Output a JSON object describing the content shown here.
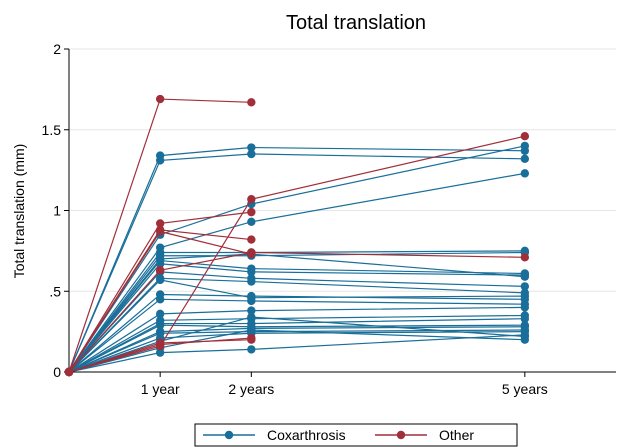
{
  "chart_data": {
    "type": "line",
    "title": "Total translation",
    "ylabel": "Total translation (mm)",
    "xlabel": "",
    "x_ticks": [
      {
        "value": 1,
        "label": "1 year"
      },
      {
        "value": 2,
        "label": "2 years"
      },
      {
        "value": 5,
        "label": "5 years"
      }
    ],
    "y_ticks": [
      {
        "value": 0,
        "label": "0"
      },
      {
        "value": 0.5,
        "label": ".5"
      },
      {
        "value": 1,
        "label": "1"
      },
      {
        "value": 1.5,
        "label": "1.5"
      },
      {
        "value": 2,
        "label": "2"
      }
    ],
    "xlim": [
      0,
      6
    ],
    "ylim": [
      0,
      2
    ],
    "legend": {
      "position": "bottom",
      "entries": [
        {
          "label": "Coxarthrosis",
          "color": "#1a6f9a"
        },
        {
          "label": "Other",
          "color": "#a12f3a"
        }
      ]
    },
    "groups": [
      {
        "name": "Coxarthrosis",
        "color": "#1a6f9a",
        "series": [
          [
            [
              0,
              0
            ],
            [
              1,
              1.34
            ],
            [
              2,
              1.39
            ],
            [
              5,
              1.37
            ]
          ],
          [
            [
              0,
              0
            ],
            [
              1,
              1.31
            ],
            [
              2,
              1.35
            ],
            [
              5,
              1.32
            ]
          ],
          [
            [
              0,
              0
            ],
            [
              1,
              0.85
            ],
            [
              2,
              1.04
            ],
            [
              5,
              1.4
            ]
          ],
          [
            [
              0,
              0
            ],
            [
              1,
              0.77
            ],
            [
              2,
              0.93
            ],
            [
              5,
              1.23
            ]
          ],
          [
            [
              0,
              0
            ],
            [
              1,
              0.74
            ],
            [
              2,
              0.74
            ],
            [
              5,
              0.75
            ]
          ],
          [
            [
              0,
              0
            ],
            [
              1,
              0.72
            ],
            [
              2,
              0.72
            ],
            [
              5,
              0.74
            ]
          ],
          [
            [
              0,
              0
            ],
            [
              1,
              0.7
            ],
            [
              2,
              0.73
            ],
            [
              5,
              0.59
            ]
          ],
          [
            [
              0,
              0
            ],
            [
              1,
              0.69
            ],
            [
              2,
              0.64
            ],
            [
              5,
              0.61
            ]
          ],
          [
            [
              0,
              0
            ],
            [
              1,
              0.67
            ],
            [
              2,
              0.62
            ],
            [
              5,
              0.6
            ]
          ],
          [
            [
              0,
              0
            ],
            [
              1,
              0.62
            ],
            [
              2,
              0.58
            ],
            [
              5,
              0.53
            ]
          ],
          [
            [
              0,
              0
            ],
            [
              1,
              0.58
            ],
            [
              2,
              0.56
            ],
            [
              5,
              0.49
            ]
          ],
          [
            [
              0,
              0
            ],
            [
              1,
              0.57
            ],
            [
              2,
              0.46
            ],
            [
              5,
              0.47
            ]
          ],
          [
            [
              0,
              0
            ],
            [
              1,
              0.48
            ],
            [
              2,
              0.47
            ],
            [
              5,
              0.45
            ]
          ],
          [
            [
              0,
              0
            ],
            [
              1,
              0.45
            ],
            [
              2,
              0.44
            ],
            [
              5,
              0.42
            ]
          ],
          [
            [
              0,
              0
            ],
            [
              1,
              0.36
            ],
            [
              2,
              0.38
            ],
            [
              5,
              0.4
            ]
          ],
          [
            [
              0,
              0
            ],
            [
              1,
              0.32
            ],
            [
              2,
              0.33
            ],
            [
              5,
              0.35
            ]
          ],
          [
            [
              0,
              0
            ],
            [
              1,
              0.3
            ],
            [
              2,
              0.3
            ],
            [
              5,
              0.33
            ]
          ],
          [
            [
              0,
              0
            ],
            [
              1,
              0.29
            ],
            [
              2,
              0.28
            ],
            [
              5,
              0.29
            ]
          ],
          [
            [
              0,
              0
            ],
            [
              1,
              0.25
            ],
            [
              2,
              0.27
            ],
            [
              5,
              0.28
            ]
          ],
          [
            [
              0,
              0
            ],
            [
              1,
              0.24
            ],
            [
              2,
              0.25
            ],
            [
              5,
              0.26
            ]
          ],
          [
            [
              0,
              0
            ],
            [
              1,
              0.21
            ],
            [
              2,
              0.24
            ],
            [
              5,
              0.25
            ]
          ],
          [
            [
              0,
              0
            ],
            [
              1,
              0.19
            ],
            [
              2,
              0.34
            ],
            [
              5,
              0.22
            ]
          ],
          [
            [
              0,
              0
            ],
            [
              1,
              0.15
            ],
            [
              2,
              0.26
            ],
            [
              5,
              0.2
            ]
          ],
          [
            [
              0,
              0
            ],
            [
              1,
              0.12
            ],
            [
              2,
              0.14
            ],
            [
              5,
              0.23
            ]
          ]
        ]
      },
      {
        "name": "Other",
        "color": "#a12f3a",
        "series": [
          [
            [
              0,
              0
            ],
            [
              1,
              1.69
            ],
            [
              2,
              1.67
            ]
          ],
          [
            [
              0,
              0
            ],
            [
              1,
              0.92
            ],
            [
              2,
              0.99
            ]
          ],
          [
            [
              0,
              0
            ],
            [
              1,
              0.88
            ],
            [
              2,
              0.82
            ]
          ],
          [
            [
              0,
              0
            ],
            [
              1,
              0.87
            ],
            [
              2,
              0.73
            ]
          ],
          [
            [
              0,
              0
            ],
            [
              1,
              0.16
            ],
            [
              2,
              1.07
            ],
            [
              5,
              1.46
            ]
          ],
          [
            [
              0,
              0
            ],
            [
              1,
              0.63
            ],
            [
              2,
              0.74
            ],
            [
              5,
              0.71
            ]
          ],
          [
            [
              0,
              0
            ],
            [
              1,
              0.17
            ],
            [
              2,
              0.21
            ]
          ],
          [
            [
              0,
              0
            ],
            [
              1,
              0.18
            ],
            [
              2,
              0.2
            ]
          ]
        ]
      }
    ]
  }
}
